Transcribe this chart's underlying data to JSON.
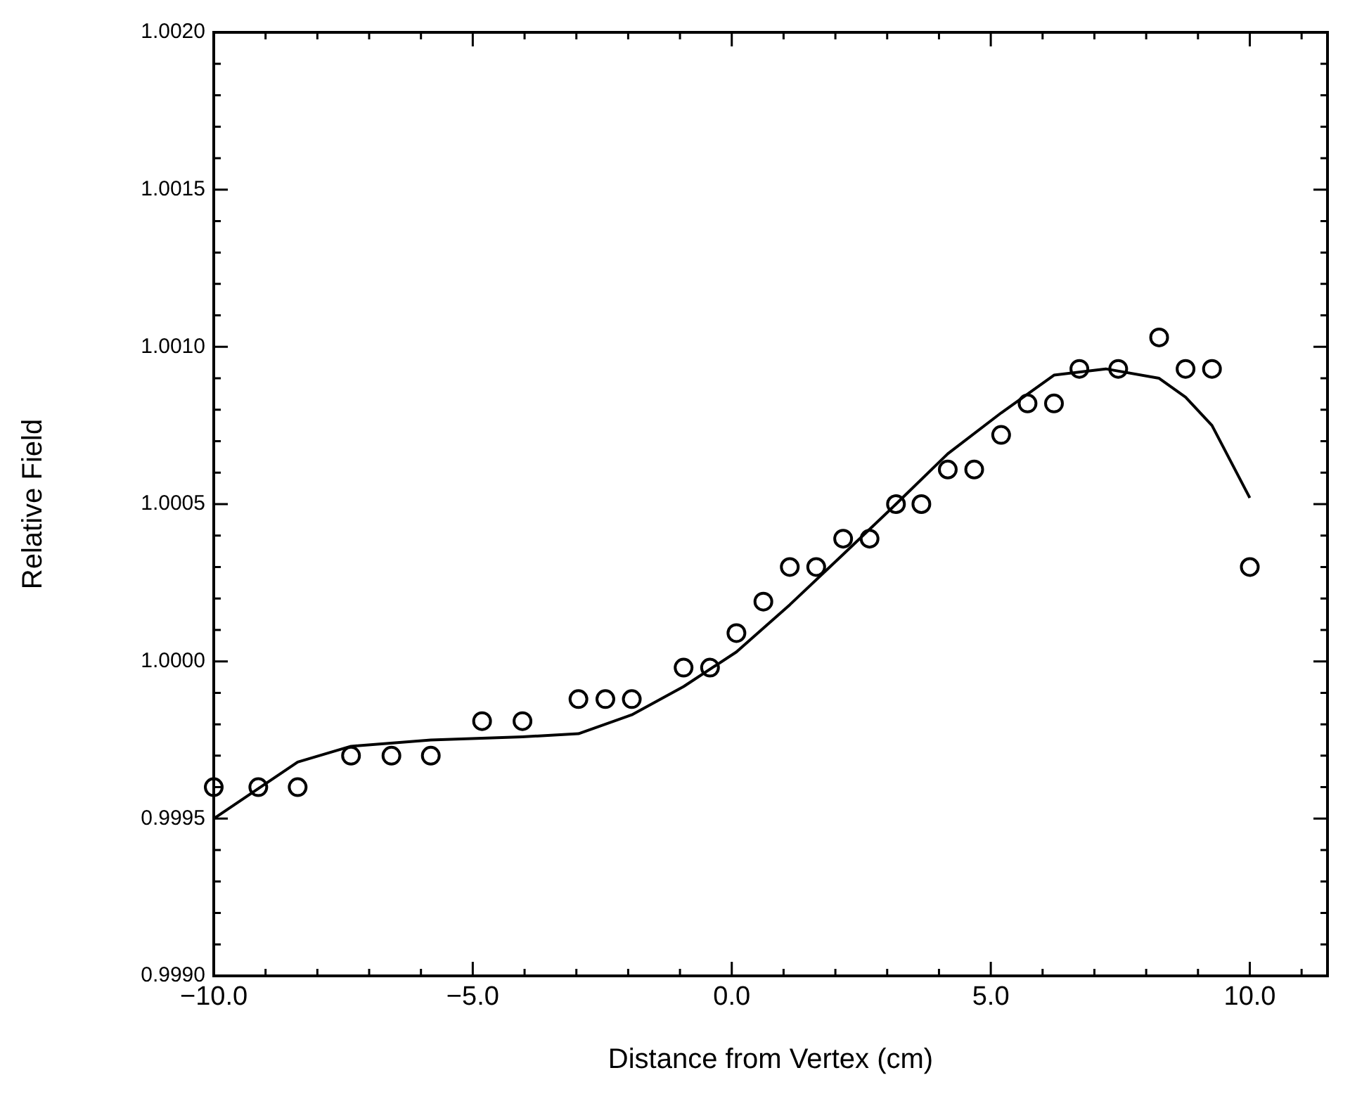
{
  "chart_data": {
    "type": "scatter",
    "xlabel": "Distance from Vertex (cm)",
    "ylabel": "Relative Field",
    "xlim": [
      -10,
      11.5
    ],
    "ylim": [
      0.999,
      1.002
    ],
    "xticks": [
      {
        "value": -10,
        "label": "−10.0"
      },
      {
        "value": -9,
        "label": null
      },
      {
        "value": -8,
        "label": null
      },
      {
        "value": -7,
        "label": null
      },
      {
        "value": -6,
        "label": null
      },
      {
        "value": -5,
        "label": "−5.0"
      },
      {
        "value": -4,
        "label": null
      },
      {
        "value": -3,
        "label": null
      },
      {
        "value": -2,
        "label": null
      },
      {
        "value": -1,
        "label": null
      },
      {
        "value": 0,
        "label": "0.0"
      },
      {
        "value": 1,
        "label": null
      },
      {
        "value": 2,
        "label": null
      },
      {
        "value": 3,
        "label": null
      },
      {
        "value": 4,
        "label": null
      },
      {
        "value": 5,
        "label": "5.0"
      },
      {
        "value": 6,
        "label": null
      },
      {
        "value": 7,
        "label": null
      },
      {
        "value": 8,
        "label": null
      },
      {
        "value": 9,
        "label": null
      },
      {
        "value": 10,
        "label": "10.0"
      },
      {
        "value": 11,
        "label": null
      }
    ],
    "yticks": [
      {
        "value": 0.999,
        "label": "0.9990"
      },
      {
        "value": 0.9991,
        "label": null
      },
      {
        "value": 0.9992,
        "label": null
      },
      {
        "value": 0.9993,
        "label": null
      },
      {
        "value": 0.9994,
        "label": null
      },
      {
        "value": 0.9995,
        "label": "0.9995"
      },
      {
        "value": 0.9996,
        "label": null
      },
      {
        "value": 0.9997,
        "label": null
      },
      {
        "value": 0.9998,
        "label": null
      },
      {
        "value": 0.9999,
        "label": null
      },
      {
        "value": 1,
        "label": "1.0000"
      },
      {
        "value": 1.0001,
        "label": null
      },
      {
        "value": 1.0002,
        "label": null
      },
      {
        "value": 1.0003,
        "label": null
      },
      {
        "value": 1.0004,
        "label": null
      },
      {
        "value": 1.0005,
        "label": "1.0005"
      },
      {
        "value": 1.0006,
        "label": null
      },
      {
        "value": 1.0007,
        "label": null
      },
      {
        "value": 1.0008,
        "label": null
      },
      {
        "value": 1.0009,
        "label": null
      },
      {
        "value": 1.001,
        "label": "1.0010"
      },
      {
        "value": 1.0011,
        "label": null
      },
      {
        "value": 1.0012,
        "label": null
      },
      {
        "value": 1.0013,
        "label": null
      },
      {
        "value": 1.0014,
        "label": null
      },
      {
        "value": 1.0015,
        "label": "1.0015"
      },
      {
        "value": 1.0016,
        "label": null
      },
      {
        "value": 1.0017,
        "label": null
      },
      {
        "value": 1.0018,
        "label": null
      },
      {
        "value": 1.0019,
        "label": null
      },
      {
        "value": 1.002,
        "label": "1.0020"
      }
    ],
    "grid": false,
    "legend": false,
    "series": [
      {
        "type": "scatter",
        "marker": "circle",
        "color": "#000000",
        "x": [
          -10.0,
          -9.14,
          -8.38,
          -7.35,
          -6.57,
          -5.81,
          -4.82,
          -4.04,
          -2.96,
          -2.44,
          -1.93,
          -0.93,
          -0.42,
          0.09,
          0.61,
          1.12,
          1.63,
          2.15,
          2.66,
          3.17,
          3.66,
          4.17,
          4.68,
          5.2,
          5.71,
          6.22,
          6.71,
          7.46,
          8.25,
          8.76,
          9.27,
          10.0
        ],
        "values": [
          0.9996,
          0.9996,
          0.9996,
          0.9997,
          0.9997,
          0.9997,
          0.99981,
          0.99981,
          0.99988,
          0.99988,
          0.99988,
          0.99998,
          0.99998,
          1.00009,
          1.00019,
          1.0003,
          1.0003,
          1.00039,
          1.00039,
          1.0005,
          1.0005,
          1.00061,
          1.00061,
          1.00072,
          1.00082,
          1.00082,
          1.00093,
          1.00093,
          1.00103,
          1.00093,
          1.00093,
          1.0003
        ]
      },
      {
        "type": "line",
        "marker": "none",
        "line_style": "solid",
        "color": "#000000",
        "x": [
          -10.0,
          -8.38,
          -7.35,
          -5.81,
          -4.04,
          -2.96,
          -1.93,
          -0.93,
          0.09,
          1.12,
          2.15,
          3.17,
          4.17,
          5.2,
          6.22,
          7.22,
          8.25,
          8.76,
          9.27,
          10.0
        ],
        "values": [
          0.9995,
          0.99968,
          0.99973,
          0.99975,
          0.99976,
          0.99977,
          0.99983,
          0.99992,
          1.00003,
          1.00018,
          1.00034,
          1.0005,
          1.00066,
          1.00079,
          1.00091,
          1.00093,
          1.0009,
          1.00084,
          1.00075,
          1.00052
        ]
      }
    ]
  }
}
